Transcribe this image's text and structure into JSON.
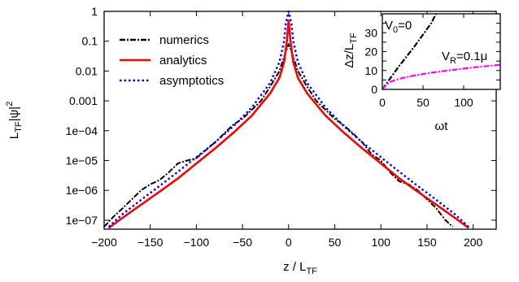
{
  "chart_data": [
    {
      "type": "line",
      "xlabel": "z / L",
      "xlabel_sub": "TF",
      "ylabel": "L",
      "ylabel_sub": "TF",
      "ylabel_rest": "|ψ|",
      "ylabel_sup": "2",
      "y_scale": "log",
      "xlim": [
        -200,
        225
      ],
      "ylim": [
        5e-08,
        1
      ],
      "x_ticks": [
        -200,
        -150,
        -100,
        -50,
        0,
        50,
        100,
        150,
        200
      ],
      "x_tick_labels": [
        "−200",
        "−150",
        "−100",
        "−50",
        "0",
        "50",
        "100",
        "150",
        "200"
      ],
      "y_ticks": [
        1e-07,
        1e-06,
        1e-05,
        0.0001,
        0.001,
        0.01,
        0.1,
        1
      ],
      "y_tick_labels": [
        "1e−07",
        "1e−06",
        "1e−05",
        "1e−04",
        "0.001",
        "0.01",
        "0.1",
        "1"
      ],
      "legend_position": "top-left",
      "series": [
        {
          "name": "numerics",
          "color": "#000000",
          "style": "dash-dot",
          "x": [
            -200,
            -190,
            -180,
            -170,
            -160,
            -150,
            -140,
            -130,
            -120,
            -110,
            -100,
            -90,
            -80,
            -70,
            -60,
            -50,
            -40,
            -30,
            -20,
            -10,
            -5,
            0,
            5,
            10,
            20,
            30,
            40,
            50,
            60,
            70,
            80,
            90,
            100,
            110,
            120,
            130,
            140,
            150,
            160,
            170,
            178
          ],
          "y": [
            6e-08,
            1.3e-07,
            2.5e-07,
            5e-07,
            1e-06,
            1.6e-06,
            2.2e-06,
            4e-06,
            8e-06,
            1e-05,
            1.2e-05,
            2.2e-05,
            4e-05,
            8e-05,
            0.00016,
            0.00025,
            0.0005,
            0.001,
            0.003,
            0.01,
            0.03,
            0.08,
            0.03,
            0.01,
            0.003,
            0.001,
            0.0005,
            0.00025,
            0.00015,
            8e-05,
            4e-05,
            1.6e-05,
            1e-05,
            4e-06,
            2e-06,
            1.6e-06,
            1e-06,
            5e-07,
            2.5e-07,
            1e-07,
            6e-08
          ]
        },
        {
          "name": "analytics",
          "color": "#ff0000",
          "style": "solid",
          "x": [
            -195,
            -180,
            -160,
            -140,
            -120,
            -100,
            -80,
            -60,
            -40,
            -20,
            -10,
            -5,
            -2,
            0,
            2,
            5,
            10,
            20,
            40,
            60,
            80,
            100,
            120,
            140,
            160,
            180,
            195
          ],
          "y": [
            5.5e-08,
            1.2e-07,
            3.3e-07,
            9e-07,
            2.5e-06,
            8e-06,
            2.5e-05,
            8.5e-05,
            0.00032,
            0.0018,
            0.006,
            0.02,
            0.1,
            0.5,
            0.1,
            0.02,
            0.006,
            0.0018,
            0.00032,
            8.5e-05,
            2.5e-05,
            8e-06,
            2.5e-06,
            9e-07,
            3.3e-07,
            1.2e-07,
            5.5e-08
          ]
        },
        {
          "name": "asymptotics",
          "color": "#0000ff",
          "style": "dotted",
          "x": [
            -195,
            -180,
            -160,
            -140,
            -120,
            -100,
            -80,
            -60,
            -40,
            -20,
            -10,
            -5,
            -3,
            0,
            3,
            5,
            10,
            20,
            40,
            60,
            80,
            100,
            120,
            140,
            160,
            180,
            195
          ],
          "y": [
            6e-08,
            1.6e-07,
            4.8e-07,
            1.4e-06,
            4.2e-06,
            1.3e-05,
            4e-05,
            0.00014,
            0.0006,
            0.004,
            0.02,
            0.1,
            0.4,
            1,
            0.4,
            0.1,
            0.02,
            0.004,
            0.0006,
            0.00014,
            4e-05,
            1.3e-05,
            4.2e-06,
            1.4e-06,
            4.8e-07,
            1.6e-07,
            6e-08
          ]
        }
      ]
    },
    {
      "type": "line",
      "inset": true,
      "xlabel": "ωt",
      "ylabel": "Δz/L",
      "ylabel_sub": "TF",
      "xlim": [
        0,
        145
      ],
      "ylim": [
        0,
        40
      ],
      "x_ticks": [
        0,
        50,
        100
      ],
      "y_ticks": [
        0,
        5,
        10,
        15,
        20,
        25,
        30,
        35
      ],
      "annotations": [
        {
          "text": "V",
          "sub": "0",
          "rest": "=0"
        },
        {
          "text": "V",
          "sub": "R",
          "rest": "=0.1μ"
        }
      ],
      "series": [
        {
          "label": "V0=0",
          "color": "#000000",
          "style": "dash-dot",
          "x": [
            0,
            10,
            20,
            30,
            40,
            50,
            60,
            66
          ],
          "y": [
            0,
            6,
            12,
            17.5,
            23,
            29,
            35,
            40
          ]
        },
        {
          "label": "VR=0.1μ",
          "color": "#ff00ff",
          "style": "dash-dot",
          "x": [
            0,
            5,
            10,
            20,
            30,
            40,
            60,
            80,
            100,
            120,
            145
          ],
          "y": [
            0,
            2.5,
            4,
            5.5,
            6.5,
            7.4,
            8.8,
            10,
            11,
            12,
            13
          ]
        }
      ]
    }
  ]
}
